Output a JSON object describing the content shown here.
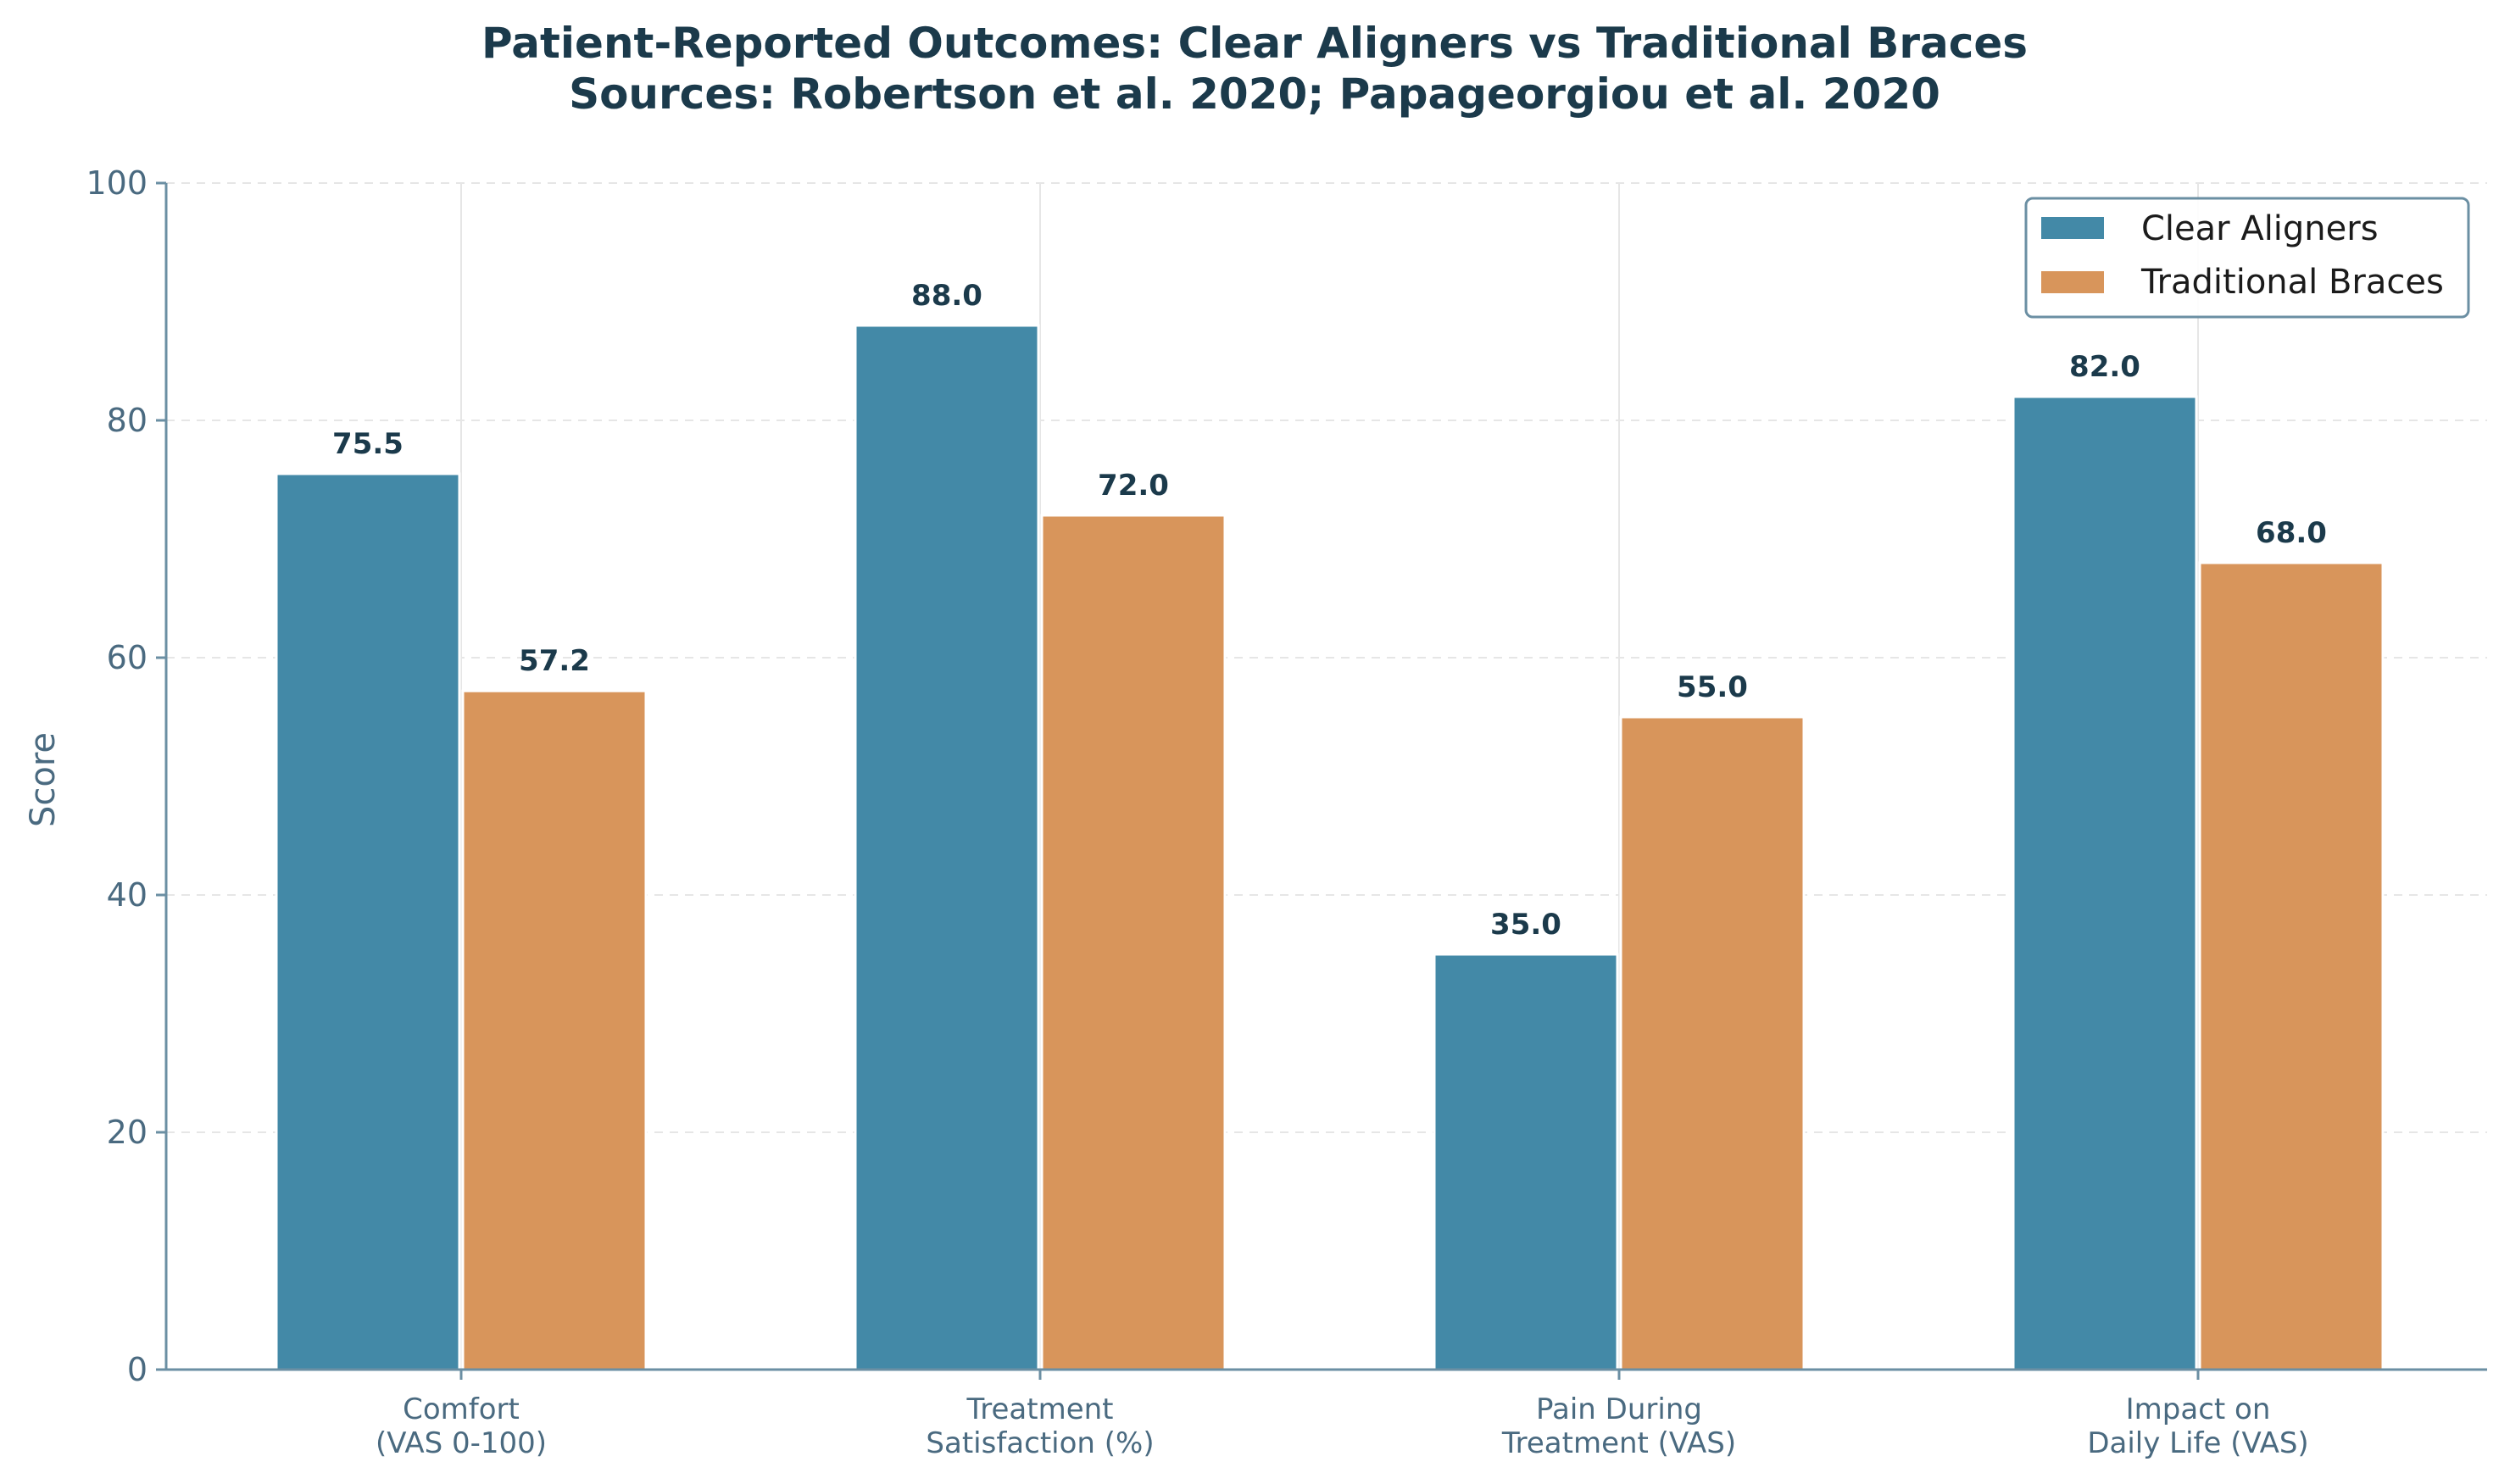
{
  "chart_data": {
    "type": "bar",
    "title": "Patient-Reported Outcomes: Clear Aligners vs Traditional Braces",
    "subtitle": "Sources: Robertson et al. 2020; Papageorgiou et al. 2020",
    "xlabel": "",
    "ylabel": "Score",
    "ylim": [
      0,
      100
    ],
    "yticks": [
      0,
      20,
      40,
      60,
      80,
      100
    ],
    "grid": true,
    "legend_position": "top-right",
    "categories": [
      [
        "Comfort",
        "(VAS 0-100)"
      ],
      [
        "Treatment",
        "Satisfaction (%)"
      ],
      [
        "Pain During",
        "Treatment (VAS)"
      ],
      [
        "Impact on",
        "Daily Life (VAS)"
      ]
    ],
    "series": [
      {
        "name": "Clear Aligners",
        "color": "#4389a7",
        "values": [
          75.5,
          88.0,
          35.0,
          82.0
        ]
      },
      {
        "name": "Traditional Braces",
        "color": "#d8955b",
        "values": [
          57.2,
          72.0,
          55.0,
          68.0
        ]
      }
    ],
    "value_label_decimals": 1
  },
  "colors": {
    "title": "#1b3a4b",
    "axis": "#6b8fa3",
    "tick_text": "#4a6a80",
    "grid": "#e6e6e6",
    "legend_border": "#6b8fa3"
  }
}
